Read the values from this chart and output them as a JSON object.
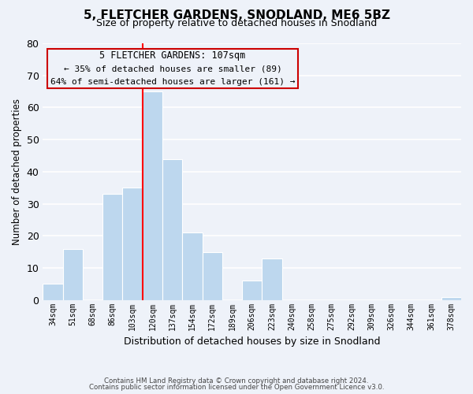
{
  "title": "5, FLETCHER GARDENS, SNODLAND, ME6 5BZ",
  "subtitle": "Size of property relative to detached houses in Snodland",
  "xlabel": "Distribution of detached houses by size in Snodland",
  "ylabel": "Number of detached properties",
  "bar_color": "#bdd7ee",
  "highlight_line_color": "#ff0000",
  "categories": [
    "34sqm",
    "51sqm",
    "68sqm",
    "86sqm",
    "103sqm",
    "120sqm",
    "137sqm",
    "154sqm",
    "172sqm",
    "189sqm",
    "206sqm",
    "223sqm",
    "240sqm",
    "258sqm",
    "275sqm",
    "292sqm",
    "309sqm",
    "326sqm",
    "344sqm",
    "361sqm",
    "378sqm"
  ],
  "values": [
    5,
    16,
    0,
    33,
    35,
    65,
    44,
    21,
    15,
    0,
    6,
    13,
    0,
    0,
    0,
    0,
    0,
    0,
    0,
    0,
    1
  ],
  "ylim": [
    0,
    80
  ],
  "yticks": [
    0,
    10,
    20,
    30,
    40,
    50,
    60,
    70,
    80
  ],
  "annotation_title": "5 FLETCHER GARDENS: 107sqm",
  "annotation_line1": "← 35% of detached houses are smaller (89)",
  "annotation_line2": "64% of semi-detached houses are larger (161) →",
  "footer_line1": "Contains HM Land Registry data © Crown copyright and database right 2024.",
  "footer_line2": "Contains public sector information licensed under the Open Government Licence v3.0.",
  "background_color": "#eef2f9",
  "grid_color": "#ffffff"
}
